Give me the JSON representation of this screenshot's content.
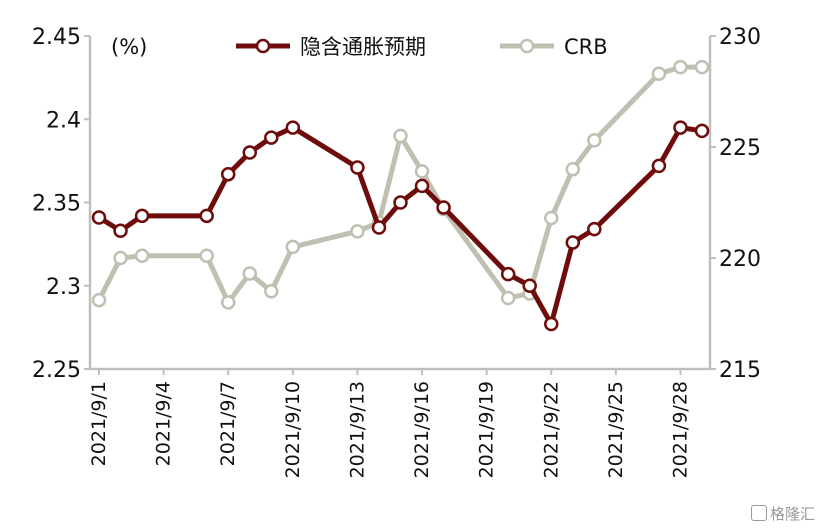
{
  "chart_data": {
    "type": "line",
    "unit_label": "(%)",
    "x": [
      "2021/9/1",
      "2021/9/2",
      "2021/9/3",
      "2021/9/6",
      "2021/9/7",
      "2021/9/8",
      "2021/9/9",
      "2021/9/10",
      "2021/9/13",
      "2021/9/14",
      "2021/9/15",
      "2021/9/16",
      "2021/9/17",
      "2021/9/20",
      "2021/9/21",
      "2021/9/22",
      "2021/9/23",
      "2021/9/24",
      "2021/9/27",
      "2021/9/28",
      "2021/9/29"
    ],
    "x_positions": [
      0,
      1,
      2,
      5,
      6,
      7,
      8,
      9,
      12,
      13,
      14,
      15,
      16,
      19,
      20,
      21,
      22,
      23,
      26,
      27,
      28
    ],
    "x_ticks": [
      {
        "pos": 0,
        "label": "2021/9/1"
      },
      {
        "pos": 3,
        "label": "2021/9/4"
      },
      {
        "pos": 6,
        "label": "2021/9/7"
      },
      {
        "pos": 9,
        "label": "2021/9/10"
      },
      {
        "pos": 12,
        "label": "2021/9/13"
      },
      {
        "pos": 15,
        "label": "2021/9/16"
      },
      {
        "pos": 18,
        "label": "2021/9/19"
      },
      {
        "pos": 21,
        "label": "2021/9/22"
      },
      {
        "pos": 24,
        "label": "2021/9/25"
      },
      {
        "pos": 27,
        "label": "2021/9/28"
      }
    ],
    "x_range": [
      0,
      28
    ],
    "left_axis": {
      "ylim": [
        2.25,
        2.45
      ],
      "ticks": [
        "2.25",
        "2.3",
        "2.35",
        "2.4",
        "2.45"
      ]
    },
    "right_axis": {
      "ylim": [
        215,
        230
      ],
      "ticks": [
        "215",
        "220",
        "225",
        "230"
      ]
    },
    "series": [
      {
        "name": "隐含通胀预期",
        "axis": "left",
        "color": "#6e0b0b",
        "values": [
          2.341,
          2.333,
          2.342,
          2.342,
          2.367,
          2.38,
          2.389,
          2.395,
          2.371,
          2.335,
          2.35,
          2.36,
          2.347,
          2.307,
          2.3,
          2.277,
          2.326,
          2.334,
          2.372,
          2.395,
          2.393
        ]
      },
      {
        "name": "CRB",
        "axis": "right",
        "color": "#c0bfb2",
        "values": [
          218.1,
          220.0,
          220.1,
          220.1,
          218.0,
          219.3,
          218.5,
          220.5,
          221.2,
          221.6,
          225.5,
          223.9,
          222.2,
          218.2,
          218.4,
          221.8,
          224.0,
          225.3,
          228.3,
          228.6,
          228.6
        ]
      }
    ],
    "legend_position": "top"
  },
  "watermark": "格隆汇"
}
